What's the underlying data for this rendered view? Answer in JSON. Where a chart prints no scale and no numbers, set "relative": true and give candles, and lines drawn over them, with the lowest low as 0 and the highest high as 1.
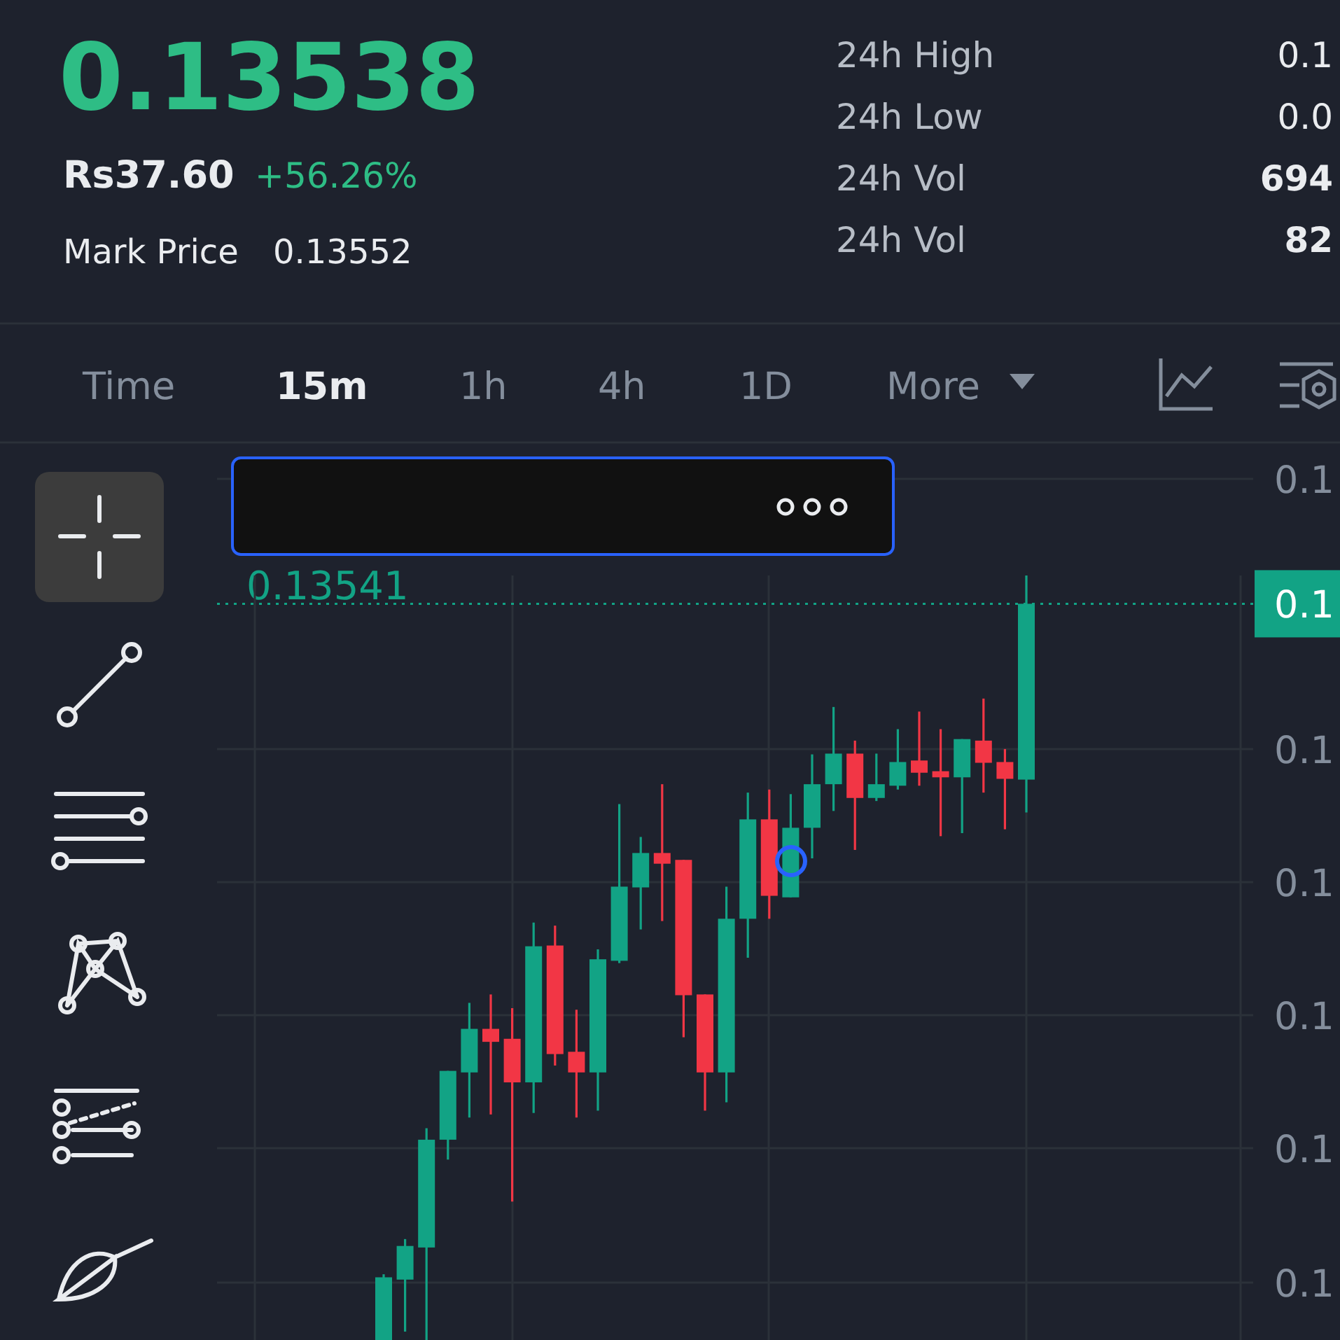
{
  "chart_data": {
    "type": "candlestick",
    "title": "0.13538",
    "relative": true,
    "grid": true,
    "categories": [
      null,
      null,
      null,
      null,
      null,
      null,
      null,
      null,
      null,
      null,
      null,
      null,
      null,
      null,
      null,
      null,
      null,
      null,
      null,
      null,
      null,
      null,
      null,
      null,
      null,
      null,
      null,
      null,
      null,
      null,
      null
    ],
    "ohlc": [
      [
        0,
        0.086,
        0,
        0.082
      ],
      [
        0.079,
        0.132,
        0.011,
        0.123
      ],
      [
        0.121,
        0.277,
        0,
        0.262
      ],
      [
        0.262,
        0.352,
        0.236,
        0.352
      ],
      [
        0.35,
        0.441,
        0.291,
        0.407
      ],
      [
        0.407,
        0.452,
        0.295,
        0.39
      ],
      [
        0.394,
        0.434,
        0.181,
        0.337
      ],
      [
        0.337,
        0.546,
        0.297,
        0.515
      ],
      [
        0.516,
        0.542,
        0.359,
        0.374
      ],
      [
        0.377,
        0.432,
        0.291,
        0.35
      ],
      [
        0.35,
        0.511,
        0.3,
        0.498
      ],
      [
        0.496,
        0.701,
        0.493,
        0.593
      ],
      [
        0.592,
        0.658,
        0.537,
        0.637
      ],
      [
        0.637,
        0.727,
        0.548,
        0.623
      ],
      [
        0.628,
        0.628,
        0.396,
        0.451
      ],
      [
        0.452,
        0.452,
        0.3,
        0.35
      ],
      [
        0.35,
        0.593,
        0.311,
        0.551
      ],
      [
        0.551,
        0.716,
        0.5,
        0.681
      ],
      [
        0.681,
        0.72,
        0.551,
        0.581
      ],
      [
        0.579,
        0.714,
        0.579,
        0.67
      ],
      [
        0.67,
        0.766,
        0.63,
        0.727
      ],
      [
        0.727,
        0.828,
        0.692,
        0.767
      ],
      [
        0.767,
        0.784,
        0.641,
        0.709
      ],
      [
        0.709,
        0.767,
        0.705,
        0.727
      ],
      [
        0.725,
        0.799,
        0.72,
        0.756
      ],
      [
        0.758,
        0.822,
        0.725,
        0.742
      ],
      [
        0.744,
        0.799,
        0.659,
        0.736
      ],
      [
        0.736,
        0.786,
        0.663,
        0.786
      ],
      [
        0.784,
        0.839,
        0.716,
        0.755
      ],
      [
        0.756,
        0.773,
        0.668,
        0.734
      ],
      [
        0.733,
        1,
        0.69,
        0.963
      ]
    ],
    "colors": [
      "#12a385",
      "#12a385",
      "#12a385",
      "#12a385",
      "#12a385",
      "#f23645",
      "#f23645",
      "#12a385",
      "#f23645",
      "#f23645",
      "#12a385",
      "#12a385",
      "#12a385",
      "#f23645",
      "#f23645",
      "#f23645",
      "#12a385",
      "#12a385",
      "#f23645",
      "#12a385",
      "#12a385",
      "#12a385",
      "#f23645",
      "#12a385",
      "#12a385",
      "#f23645",
      "#f23645",
      "#12a385",
      "#f23645",
      "#f23645",
      "#12a385"
    ],
    "ref_lines": [
      {
        "axis": "y",
        "value": 0.963,
        "color": "#12a385",
        "line_style": "dotted"
      }
    ],
    "annotations": [
      "0.13541",
      "Rs37.60",
      "+56.26%",
      "Mark Price",
      "0.13552",
      "24h High",
      "24h Low",
      "24h Vol",
      "24h Vol",
      "0.1",
      "0.0",
      "694",
      "82",
      "Time",
      "15m",
      "1h",
      "4h",
      "1D",
      "More",
      "0.1",
      "0.1",
      "0.1",
      "0.1",
      "0.1",
      "0.1",
      "0.1"
    ]
  }
}
